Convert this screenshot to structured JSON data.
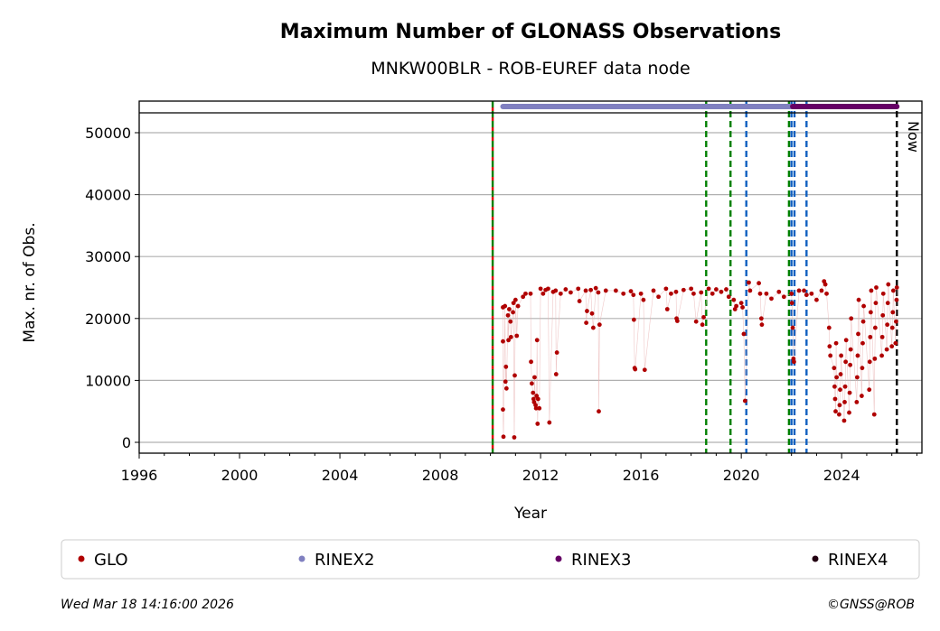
{
  "chart_data": {
    "type": "scatter",
    "title": "Maximum Number of GLONASS Observations",
    "subtitle": "MNKW00BLR - ROB-EUREF data node",
    "xlabel": "Year",
    "ylabel": "Max. nr. of Obs.",
    "xlim": [
      1996,
      2027.2
    ],
    "ylim": [
      -1750,
      55100
    ],
    "xticks": [
      1996,
      2000,
      2004,
      2008,
      2012,
      2016,
      2020,
      2024
    ],
    "yticks": [
      0,
      10000,
      20000,
      30000,
      40000,
      50000
    ],
    "grid": "horizontal",
    "now_label": "Now",
    "now_x": 2026.2,
    "vlines": [
      {
        "x": 2010.09,
        "color": "#008000",
        "color2": "#dd0000",
        "style": "dashed"
      },
      {
        "x": 2018.6,
        "color": "#008000",
        "style": "dashed"
      },
      {
        "x": 2019.57,
        "color": "#008000",
        "style": "dashed"
      },
      {
        "x": 2020.2,
        "color": "#1060c0",
        "style": "dashed"
      },
      {
        "x": 2021.9,
        "color": "#008000",
        "style": "dashed"
      },
      {
        "x": 2022.0,
        "color": "#1060c0",
        "style": "dashed"
      },
      {
        "x": 2022.12,
        "color": "#1060c0",
        "style": "dashed"
      },
      {
        "x": 2022.6,
        "color": "#1060c0",
        "style": "dashed"
      },
      {
        "x": 2026.2,
        "color": "#000000",
        "style": "dashed"
      }
    ],
    "format_bars": [
      {
        "name": "RINEX2",
        "from": 2010.5,
        "to": 2018.35,
        "color": "#8080c0"
      },
      {
        "name": "RINEX2",
        "from": 2018.42,
        "to": 2022.05,
        "color": "#8080c0"
      },
      {
        "name": "RINEX3",
        "from": 2022.05,
        "to": 2026.2,
        "color": "#660066"
      }
    ],
    "series": [
      {
        "name": "GLO",
        "color": "#b00000",
        "points": [
          [
            2010.5,
            21800
          ],
          [
            2010.5,
            16300
          ],
          [
            2010.5,
            5300
          ],
          [
            2010.52,
            900
          ],
          [
            2010.58,
            22000
          ],
          [
            2010.6,
            9800
          ],
          [
            2010.62,
            12200
          ],
          [
            2010.64,
            8700
          ],
          [
            2010.7,
            20500
          ],
          [
            2010.72,
            16500
          ],
          [
            2010.75,
            21500
          ],
          [
            2010.8,
            19500
          ],
          [
            2010.82,
            17000
          ],
          [
            2010.9,
            21000
          ],
          [
            2010.92,
            22500
          ],
          [
            2010.95,
            800
          ],
          [
            2010.97,
            10800
          ],
          [
            2011.0,
            23000
          ],
          [
            2011.05,
            17200
          ],
          [
            2011.1,
            22000
          ],
          [
            2011.3,
            23500
          ],
          [
            2011.4,
            24000
          ],
          [
            2011.6,
            24000
          ],
          [
            2011.62,
            13000
          ],
          [
            2011.65,
            9500
          ],
          [
            2011.7,
            8000
          ],
          [
            2011.72,
            7000
          ],
          [
            2011.74,
            6500
          ],
          [
            2011.76,
            10500
          ],
          [
            2011.8,
            6000
          ],
          [
            2011.82,
            5500
          ],
          [
            2011.84,
            7500
          ],
          [
            2011.86,
            16500
          ],
          [
            2011.88,
            3000
          ],
          [
            2011.9,
            7000
          ],
          [
            2011.95,
            5500
          ],
          [
            2012.0,
            24800
          ],
          [
            2012.1,
            24000
          ],
          [
            2012.2,
            24600
          ],
          [
            2012.3,
            24800
          ],
          [
            2012.35,
            3200
          ],
          [
            2012.5,
            24300
          ],
          [
            2012.6,
            24500
          ],
          [
            2012.62,
            11000
          ],
          [
            2012.65,
            14500
          ],
          [
            2012.8,
            24000
          ],
          [
            2013.0,
            24700
          ],
          [
            2013.2,
            24200
          ],
          [
            2013.5,
            24800
          ],
          [
            2013.55,
            22800
          ],
          [
            2013.8,
            24500
          ],
          [
            2013.82,
            19300
          ],
          [
            2013.85,
            21200
          ],
          [
            2014.0,
            24600
          ],
          [
            2014.05,
            20800
          ],
          [
            2014.1,
            18500
          ],
          [
            2014.2,
            24900
          ],
          [
            2014.3,
            24200
          ],
          [
            2014.32,
            5000
          ],
          [
            2014.35,
            19000
          ],
          [
            2014.6,
            24500
          ],
          [
            2015.0,
            24500
          ],
          [
            2015.3,
            24000
          ],
          [
            2015.6,
            24400
          ],
          [
            2015.7,
            23800
          ],
          [
            2015.72,
            19800
          ],
          [
            2015.75,
            12000
          ],
          [
            2015.77,
            11800
          ],
          [
            2016.0,
            24000
          ],
          [
            2016.1,
            23000
          ],
          [
            2016.15,
            11700
          ],
          [
            2016.5,
            24500
          ],
          [
            2016.7,
            23500
          ],
          [
            2017.0,
            24800
          ],
          [
            2017.05,
            21500
          ],
          [
            2017.2,
            24000
          ],
          [
            2017.4,
            24300
          ],
          [
            2017.42,
            20000
          ],
          [
            2017.45,
            19600
          ],
          [
            2017.7,
            24600
          ],
          [
            2018.0,
            24800
          ],
          [
            2018.1,
            24000
          ],
          [
            2018.2,
            19500
          ],
          [
            2018.4,
            24200
          ],
          [
            2018.45,
            19000
          ],
          [
            2018.5,
            20200
          ],
          [
            2018.7,
            24800
          ],
          [
            2018.85,
            24000
          ],
          [
            2019.0,
            24700
          ],
          [
            2019.2,
            24300
          ],
          [
            2019.4,
            24700
          ],
          [
            2019.5,
            23500
          ],
          [
            2019.7,
            23000
          ],
          [
            2019.75,
            21500
          ],
          [
            2019.8,
            22000
          ],
          [
            2020.0,
            22500
          ],
          [
            2020.05,
            21800
          ],
          [
            2020.1,
            17500
          ],
          [
            2020.15,
            6700
          ],
          [
            2020.3,
            25800
          ],
          [
            2020.35,
            24500
          ],
          [
            2020.7,
            25700
          ],
          [
            2020.75,
            24000
          ],
          [
            2020.8,
            20000
          ],
          [
            2020.82,
            19000
          ],
          [
            2021.0,
            24000
          ],
          [
            2021.2,
            23200
          ],
          [
            2021.5,
            24300
          ],
          [
            2021.7,
            23500
          ],
          [
            2022.0,
            24000
          ],
          [
            2022.02,
            22500
          ],
          [
            2022.05,
            18500
          ],
          [
            2022.08,
            13500
          ],
          [
            2022.1,
            13000
          ],
          [
            2022.3,
            24500
          ],
          [
            2022.5,
            24500
          ],
          [
            2022.6,
            23800
          ],
          [
            2022.8,
            24000
          ],
          [
            2023.0,
            23000
          ],
          [
            2023.2,
            24500
          ],
          [
            2023.3,
            26000
          ],
          [
            2023.35,
            25500
          ],
          [
            2023.4,
            24000
          ],
          [
            2023.5,
            18500
          ],
          [
            2023.52,
            15500
          ],
          [
            2023.55,
            14000
          ],
          [
            2023.7,
            12000
          ],
          [
            2023.72,
            9000
          ],
          [
            2023.74,
            7000
          ],
          [
            2023.76,
            5000
          ],
          [
            2023.78,
            16000
          ],
          [
            2023.8,
            10500
          ],
          [
            2023.9,
            4500
          ],
          [
            2023.92,
            6000
          ],
          [
            2023.94,
            8500
          ],
          [
            2023.96,
            11000
          ],
          [
            2023.98,
            14000
          ],
          [
            2024.1,
            3500
          ],
          [
            2024.12,
            6500
          ],
          [
            2024.14,
            9000
          ],
          [
            2024.16,
            13000
          ],
          [
            2024.18,
            16500
          ],
          [
            2024.3,
            4800
          ],
          [
            2024.32,
            8000
          ],
          [
            2024.34,
            12500
          ],
          [
            2024.36,
            15000
          ],
          [
            2024.38,
            20000
          ],
          [
            2024.6,
            6500
          ],
          [
            2024.62,
            10500
          ],
          [
            2024.64,
            14000
          ],
          [
            2024.66,
            17500
          ],
          [
            2024.68,
            23000
          ],
          [
            2024.8,
            7500
          ],
          [
            2024.82,
            12000
          ],
          [
            2024.84,
            16000
          ],
          [
            2024.86,
            19500
          ],
          [
            2024.88,
            22000
          ],
          [
            2025.1,
            8500
          ],
          [
            2025.12,
            13000
          ],
          [
            2025.14,
            17000
          ],
          [
            2025.16,
            21000
          ],
          [
            2025.18,
            24500
          ],
          [
            2025.3,
            4500
          ],
          [
            2025.32,
            13500
          ],
          [
            2025.34,
            18500
          ],
          [
            2025.36,
            22500
          ],
          [
            2025.38,
            25000
          ],
          [
            2025.6,
            14000
          ],
          [
            2025.62,
            17000
          ],
          [
            2025.64,
            20500
          ],
          [
            2025.66,
            24000
          ],
          [
            2025.8,
            15000
          ],
          [
            2025.82,
            19000
          ],
          [
            2025.84,
            22500
          ],
          [
            2025.86,
            25500
          ],
          [
            2026.0,
            15500
          ],
          [
            2026.02,
            18500
          ],
          [
            2026.04,
            21000
          ],
          [
            2026.06,
            24500
          ],
          [
            2026.15,
            16000
          ],
          [
            2026.17,
            19500
          ],
          [
            2026.19,
            23000
          ],
          [
            2026.2,
            25000
          ]
        ]
      }
    ],
    "legend": {
      "placement": "bottom",
      "entries": [
        {
          "label": "GLO",
          "color": "#b00000"
        },
        {
          "label": "RINEX2",
          "color": "#8080c0"
        },
        {
          "label": "RINEX3",
          "color": "#660066"
        },
        {
          "label": "RINEX4",
          "color": "#220011"
        }
      ]
    }
  },
  "footer": {
    "timestamp": "Wed Mar 18 14:16:00 2026",
    "copyright": "©GNSS@ROB"
  }
}
